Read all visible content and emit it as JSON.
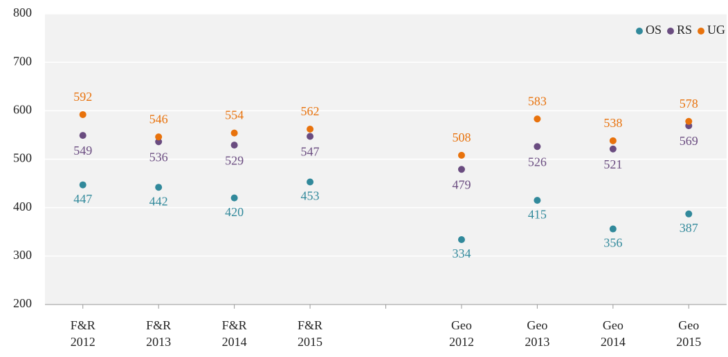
{
  "chart_data": {
    "type": "scatter",
    "categories": [
      "F&R\n2012",
      "F&R\n2013",
      "F&R\n2014",
      "F&R\n2015",
      null,
      "Geo\n2012",
      "Geo\n2013",
      "Geo\n2014",
      "Geo\n2015"
    ],
    "series": [
      {
        "name": "OS",
        "color": "#31899b",
        "values": [
          447,
          442,
          420,
          453,
          null,
          334,
          415,
          356,
          387
        ]
      },
      {
        "name": "RS",
        "color": "#6a4c80",
        "values": [
          549,
          536,
          529,
          547,
          null,
          479,
          526,
          521,
          569
        ]
      },
      {
        "name": "UG",
        "color": "#e8720c",
        "values": [
          592,
          546,
          554,
          562,
          null,
          508,
          583,
          538,
          578
        ]
      }
    ],
    "ylim": [
      200,
      800
    ],
    "yticks": [
      200,
      300,
      400,
      500,
      600,
      700,
      800
    ],
    "grid": true,
    "legend": "upper right"
  }
}
